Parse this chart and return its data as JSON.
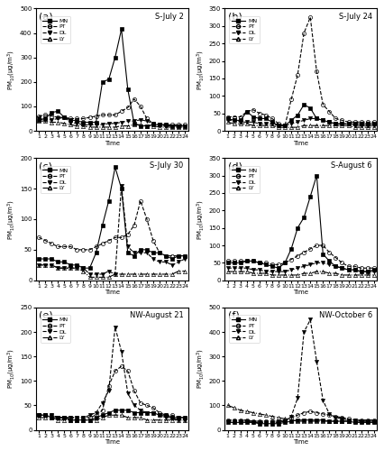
{
  "subplots": [
    {
      "label": "(a)",
      "title": "S-July 2",
      "ylim": [
        0,
        500
      ],
      "yticks": [
        0,
        100,
        200,
        300,
        400,
        500
      ],
      "MN": [
        45,
        50,
        75,
        80,
        55,
        45,
        40,
        35,
        35,
        35,
        200,
        210,
        300,
        415,
        170,
        30,
        20,
        20,
        25,
        25,
        25,
        20,
        20,
        20
      ],
      "PT": [
        60,
        65,
        60,
        55,
        55,
        50,
        50,
        50,
        55,
        60,
        65,
        65,
        65,
        80,
        95,
        130,
        100,
        50,
        30,
        25,
        25,
        25,
        25,
        25
      ],
      "DL": [
        50,
        45,
        45,
        50,
        55,
        35,
        30,
        25,
        25,
        25,
        25,
        30,
        30,
        35,
        40,
        40,
        45,
        40,
        30,
        25,
        20,
        20,
        20,
        20
      ],
      "LY": [
        40,
        40,
        35,
        35,
        30,
        25,
        20,
        20,
        15,
        15,
        15,
        15,
        15,
        20,
        20,
        25,
        25,
        20,
        20,
        15,
        15,
        15,
        15,
        15
      ]
    },
    {
      "label": "(b)",
      "title": "S-July 24",
      "ylim": [
        0,
        350
      ],
      "yticks": [
        0,
        50,
        100,
        150,
        200,
        250,
        300,
        350
      ],
      "MN": [
        35,
        30,
        30,
        55,
        40,
        35,
        35,
        25,
        15,
        15,
        30,
        45,
        75,
        65,
        35,
        30,
        25,
        20,
        20,
        20,
        20,
        20,
        20,
        20
      ],
      "PT": [
        40,
        40,
        40,
        55,
        60,
        50,
        45,
        35,
        20,
        15,
        90,
        160,
        280,
        325,
        170,
        75,
        55,
        35,
        30,
        25,
        25,
        25,
        25,
        25
      ],
      "DL": [
        30,
        30,
        25,
        25,
        25,
        20,
        20,
        20,
        15,
        15,
        20,
        25,
        30,
        35,
        35,
        30,
        25,
        20,
        20,
        20,
        15,
        15,
        15,
        15
      ],
      "LY": [
        25,
        20,
        20,
        20,
        15,
        15,
        15,
        15,
        10,
        10,
        10,
        10,
        15,
        15,
        15,
        15,
        15,
        15,
        15,
        15,
        10,
        10,
        10,
        10
      ]
    },
    {
      "label": "(c)",
      "title": "S-July 30",
      "ylim": [
        0,
        200
      ],
      "yticks": [
        0,
        50,
        100,
        150,
        200
      ],
      "MN": [
        35,
        35,
        35,
        30,
        30,
        25,
        25,
        20,
        20,
        45,
        90,
        130,
        185,
        150,
        45,
        40,
        50,
        50,
        45,
        45,
        40,
        35,
        40,
        40
      ],
      "PT": [
        70,
        65,
        60,
        55,
        55,
        55,
        50,
        50,
        50,
        55,
        60,
        65,
        70,
        70,
        75,
        90,
        130,
        100,
        65,
        45,
        40,
        40,
        40,
        40
      ],
      "DL": [
        25,
        25,
        25,
        20,
        20,
        20,
        20,
        20,
        10,
        10,
        10,
        15,
        10,
        155,
        55,
        45,
        45,
        45,
        35,
        30,
        30,
        25,
        30,
        35
      ],
      "LY": [
        25,
        25,
        25,
        20,
        20,
        20,
        20,
        15,
        5,
        5,
        5,
        5,
        10,
        10,
        10,
        10,
        10,
        10,
        10,
        10,
        10,
        10,
        15,
        15
      ]
    },
    {
      "label": "(d)",
      "title": "S-August 6",
      "ylim": [
        0,
        350
      ],
      "yticks": [
        0,
        50,
        100,
        150,
        200,
        250,
        300,
        350
      ],
      "MN": [
        50,
        50,
        50,
        55,
        55,
        50,
        45,
        40,
        35,
        50,
        90,
        150,
        180,
        240,
        300,
        75,
        55,
        40,
        35,
        30,
        30,
        25,
        25,
        30
      ],
      "PT": [
        55,
        55,
        55,
        55,
        55,
        50,
        50,
        45,
        45,
        50,
        60,
        70,
        80,
        90,
        100,
        100,
        80,
        65,
        50,
        40,
        40,
        35,
        35,
        35
      ],
      "DL": [
        35,
        35,
        35,
        35,
        30,
        30,
        25,
        25,
        25,
        25,
        30,
        35,
        40,
        45,
        50,
        50,
        45,
        40,
        35,
        30,
        30,
        25,
        25,
        25
      ],
      "LY": [
        25,
        25,
        25,
        25,
        20,
        20,
        20,
        15,
        15,
        15,
        15,
        15,
        20,
        20,
        25,
        25,
        20,
        20,
        15,
        15,
        15,
        15,
        15,
        15
      ]
    },
    {
      "label": "(e)",
      "title": "NW-August 21",
      "ylim": [
        0,
        250
      ],
      "yticks": [
        0,
        50,
        100,
        150,
        200,
        250
      ],
      "MN": [
        30,
        30,
        25,
        25,
        25,
        20,
        20,
        20,
        20,
        25,
        30,
        35,
        40,
        40,
        40,
        35,
        35,
        35,
        35,
        30,
        30,
        25,
        25,
        25
      ],
      "PT": [
        30,
        30,
        30,
        25,
        25,
        25,
        25,
        25,
        25,
        30,
        40,
        90,
        120,
        130,
        120,
        80,
        55,
        50,
        45,
        35,
        30,
        30,
        25,
        25
      ],
      "DL": [
        30,
        30,
        30,
        25,
        25,
        25,
        25,
        25,
        30,
        35,
        55,
        80,
        210,
        160,
        75,
        50,
        40,
        35,
        35,
        30,
        25,
        25,
        20,
        20
      ],
      "LY": [
        25,
        25,
        25,
        20,
        20,
        20,
        20,
        20,
        20,
        20,
        25,
        30,
        30,
        30,
        25,
        25,
        25,
        20,
        20,
        20,
        20,
        20,
        20,
        20
      ]
    },
    {
      "label": "(f)",
      "title": "NW-October 6",
      "ylim": [
        0,
        500
      ],
      "yticks": [
        0,
        100,
        200,
        300,
        400,
        500
      ],
      "MN": [
        30,
        30,
        30,
        30,
        30,
        25,
        25,
        25,
        25,
        30,
        35,
        40,
        40,
        40,
        40,
        40,
        35,
        35,
        35,
        35,
        30,
        30,
        30,
        30
      ],
      "PT": [
        40,
        40,
        40,
        40,
        35,
        35,
        35,
        35,
        35,
        40,
        50,
        60,
        70,
        75,
        70,
        65,
        60,
        55,
        50,
        45,
        40,
        40,
        40,
        40
      ],
      "DL": [
        35,
        35,
        35,
        35,
        30,
        30,
        30,
        30,
        30,
        35,
        55,
        130,
        400,
        450,
        280,
        120,
        65,
        50,
        45,
        40,
        40,
        35,
        35,
        35
      ],
      "LY": [
        100,
        90,
        80,
        75,
        70,
        65,
        60,
        55,
        50,
        45,
        40,
        35,
        35,
        35,
        35,
        35,
        35,
        35,
        35,
        35,
        35,
        35,
        35,
        35
      ]
    }
  ],
  "time_labels": [
    "1",
    "2",
    "3",
    "4",
    "5",
    "6",
    "7",
    "8",
    "9",
    "10",
    "11",
    "12",
    "13",
    "14",
    "15",
    "16",
    "17",
    "18",
    "19",
    "20",
    "21",
    "22",
    "23",
    "24"
  ],
  "ylabel": "PM$_{10}$(\\u03bcg/m$^3$)",
  "xlabel": "Time"
}
